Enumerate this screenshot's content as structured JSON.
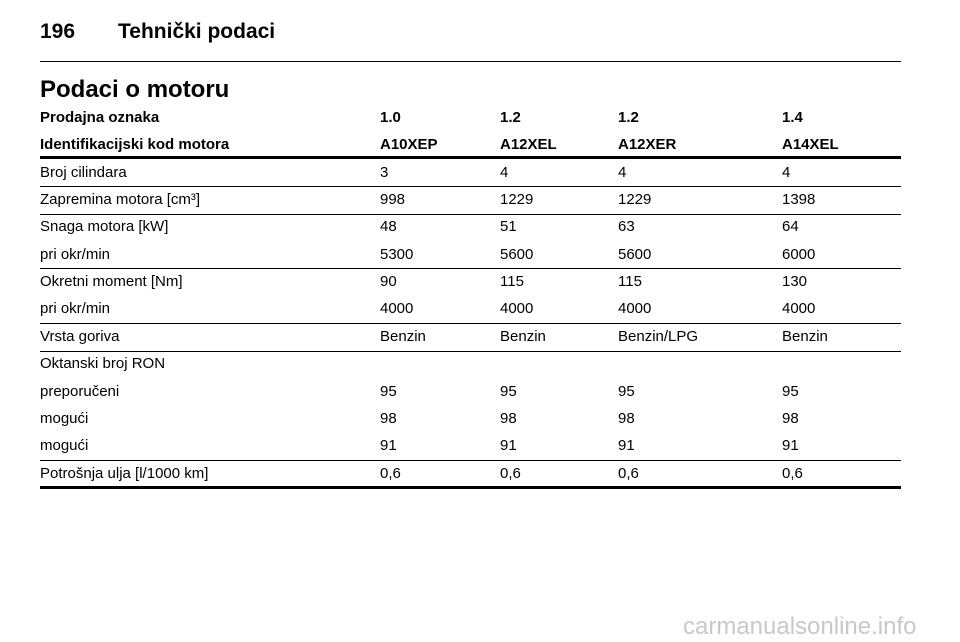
{
  "header": {
    "page_number": "196",
    "title": "Tehnički podaci"
  },
  "section_title": "Podaci o motoru",
  "table": {
    "head": [
      {
        "label": "Prodajna oznaka",
        "values": [
          "1.0",
          "1.2",
          "1.2",
          "1.4"
        ]
      },
      {
        "label": "Identifikacijski kod motora",
        "values": [
          "A10XEP",
          "A12XEL",
          "A12XER",
          "A14XEL"
        ]
      }
    ],
    "groups": [
      {
        "rows": [
          {
            "label": "Broj cilindara",
            "values": [
              "3",
              "4",
              "4",
              "4"
            ]
          }
        ]
      },
      {
        "rows": [
          {
            "label": "Zapremina motora [cm³]",
            "values": [
              "998",
              "1229",
              "1229",
              "1398"
            ]
          }
        ]
      },
      {
        "rows": [
          {
            "label": "Snaga motora [kW]",
            "values": [
              "48",
              "51",
              "63",
              "64"
            ]
          },
          {
            "label": "pri okr/min",
            "values": [
              "5300",
              "5600",
              "5600",
              "6000"
            ]
          }
        ]
      },
      {
        "rows": [
          {
            "label": "Okretni moment [Nm]",
            "values": [
              "90",
              "115",
              "115",
              "130"
            ]
          },
          {
            "label": "pri okr/min",
            "values": [
              "4000",
              "4000",
              "4000",
              "4000"
            ]
          }
        ]
      },
      {
        "rows": [
          {
            "label": "Vrsta goriva",
            "values": [
              "Benzin",
              "Benzin",
              "Benzin/LPG",
              "Benzin"
            ]
          }
        ]
      },
      {
        "rows": [
          {
            "label": "Oktanski broj RON",
            "values": []
          },
          {
            "label": "preporučeni",
            "values": [
              "95",
              "95",
              "95",
              "95"
            ]
          },
          {
            "label": "mogući",
            "values": [
              "98",
              "98",
              "98",
              "98"
            ]
          },
          {
            "label": "mogući",
            "values": [
              "91",
              "91",
              "91",
              "91"
            ]
          }
        ]
      },
      {
        "rows": [
          {
            "label": "Potrošnja ulja [l/1000 km]",
            "values": [
              "0,6",
              "0,6",
              "0,6",
              "0,6"
            ]
          }
        ]
      }
    ]
  },
  "watermark": "carmanualsonline.info"
}
